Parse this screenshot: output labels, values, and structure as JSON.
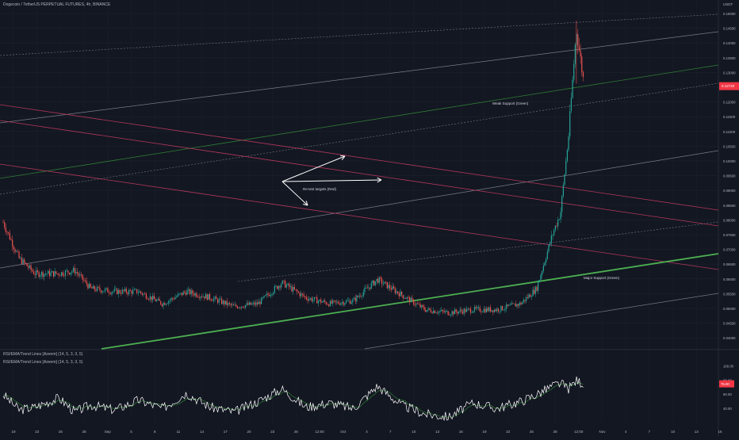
{
  "header": {
    "symbol_line": "Dogecoin / TetherUS PERPETUAL FUTURES, 4h, BINANCE",
    "indicator_1": "RSI/EMA/Trend Lines [Azeem] (14, 5, 3, 3, 5)",
    "indicator_2": "RSI/EMA/Trend Lines [Azeem] (14, 5, 3, 3, 5)"
  },
  "price_axis": {
    "currency": "USDT",
    "ticks": [
      "0.15000",
      "0.14500",
      "0.14000",
      "0.13500",
      "0.13000",
      "0.12500",
      "0.12000",
      "0.11500",
      "0.11000",
      "0.10500",
      "0.10000",
      "0.09500",
      "0.09000",
      "0.08500",
      "0.08000",
      "0.07500",
      "0.07000",
      "0.06500",
      "0.06000",
      "0.05500",
      "0.05000",
      "0.04500",
      "0.04000"
    ],
    "last_price": "0.12720",
    "last_price_color": "#f23645"
  },
  "rsi_axis": {
    "ticks": [
      "100.00",
      "80.00",
      "60.00",
      "40.00"
    ],
    "current": "75.00",
    "current_color": "#f23645"
  },
  "time_axis": {
    "labels": [
      "19",
      "22",
      "25",
      "28",
      "Sep",
      "5",
      "8",
      "11",
      "14",
      "17",
      "20",
      "23",
      "26",
      "12:00",
      "Oct",
      "4",
      "7",
      "10",
      "13",
      "16",
      "19",
      "22",
      "25",
      "28",
      "12:00",
      "Nov",
      "4",
      "7",
      "10",
      "13",
      "16"
    ]
  },
  "annotations": {
    "retest": "Re-test targets (Red)",
    "weak_support": "Weak Support (Green)",
    "major_support": "Major Support (Green)"
  },
  "colors": {
    "background": "#131722",
    "up": "#26a69a",
    "down": "#ef5350",
    "support_green": "#4caf50",
    "resistance_red": "#b2385b",
    "channel_grey": "#787b86",
    "rsi_line": "#ffffff"
  },
  "chart_data": {
    "type": "candlestick",
    "symbol": "DOGEUSDT.P",
    "timeframe": "4h",
    "y_range": [
      0.04,
      0.15
    ],
    "rsi_range": [
      20,
      100
    ],
    "price_path": [
      {
        "date": "Aug 18",
        "price": 0.082
      },
      {
        "date": "Aug 20",
        "price": 0.07
      },
      {
        "date": "Aug 22",
        "price": 0.065
      },
      {
        "date": "Aug 25",
        "price": 0.065
      },
      {
        "date": "Aug 27",
        "price": 0.066
      },
      {
        "date": "Aug 29",
        "price": 0.06
      },
      {
        "date": "Sep 1",
        "price": 0.059
      },
      {
        "date": "Sep 4",
        "price": 0.059
      },
      {
        "date": "Sep 7",
        "price": 0.055
      },
      {
        "date": "Sep 10",
        "price": 0.059
      },
      {
        "date": "Sep 13",
        "price": 0.057
      },
      {
        "date": "Sep 16",
        "price": 0.054
      },
      {
        "date": "Sep 19",
        "price": 0.055
      },
      {
        "date": "Sep 22",
        "price": 0.062
      },
      {
        "date": "Sep 25",
        "price": 0.057
      },
      {
        "date": "Sep 28",
        "price": 0.055
      },
      {
        "date": "Oct 1",
        "price": 0.056
      },
      {
        "date": "Oct 4",
        "price": 0.063
      },
      {
        "date": "Oct 7",
        "price": 0.058
      },
      {
        "date": "Oct 10",
        "price": 0.053
      },
      {
        "date": "Oct 13",
        "price": 0.052
      },
      {
        "date": "Oct 16",
        "price": 0.053
      },
      {
        "date": "Oct 19",
        "price": 0.053
      },
      {
        "date": "Oct 22",
        "price": 0.055
      },
      {
        "date": "Oct 24",
        "price": 0.06
      },
      {
        "date": "Oct 26",
        "price": 0.078
      },
      {
        "date": "Oct 27",
        "price": 0.085
      },
      {
        "date": "Oct 28",
        "price": 0.11
      },
      {
        "date": "Oct 29",
        "price": 0.146
      },
      {
        "date": "Oct 30",
        "price": 0.127
      }
    ],
    "rsi_path": [
      {
        "date": "Aug 18",
        "rsi": 60
      },
      {
        "date": "Aug 20",
        "rsi": 38
      },
      {
        "date": "Aug 22",
        "rsi": 42
      },
      {
        "date": "Aug 25",
        "rsi": 55
      },
      {
        "date": "Aug 27",
        "rsi": 35
      },
      {
        "date": "Aug 29",
        "rsi": 45
      },
      {
        "date": "Sep 1",
        "rsi": 38
      },
      {
        "date": "Sep 4",
        "rsi": 52
      },
      {
        "date": "Sep 7",
        "rsi": 40
      },
      {
        "date": "Sep 10",
        "rsi": 62
      },
      {
        "date": "Sep 13",
        "rsi": 42
      },
      {
        "date": "Sep 16",
        "rsi": 35
      },
      {
        "date": "Sep 19",
        "rsi": 50
      },
      {
        "date": "Sep 22",
        "rsi": 68
      },
      {
        "date": "Sep 25",
        "rsi": 42
      },
      {
        "date": "Sep 28",
        "rsi": 48
      },
      {
        "date": "Oct 1",
        "rsi": 40
      },
      {
        "date": "Oct 4",
        "rsi": 72
      },
      {
        "date": "Oct 7",
        "rsi": 45
      },
      {
        "date": "Oct 10",
        "rsi": 32
      },
      {
        "date": "Oct 13",
        "rsi": 28
      },
      {
        "date": "Oct 16",
        "rsi": 48
      },
      {
        "date": "Oct 19",
        "rsi": 40
      },
      {
        "date": "Oct 22",
        "rsi": 50
      },
      {
        "date": "Oct 24",
        "rsi": 60
      },
      {
        "date": "Oct 26",
        "rsi": 72
      },
      {
        "date": "Oct 27",
        "rsi": 76
      },
      {
        "date": "Oct 28",
        "rsi": 68
      },
      {
        "date": "Oct 29",
        "rsi": 80
      },
      {
        "date": "Oct 30",
        "rsi": 75
      }
    ]
  }
}
